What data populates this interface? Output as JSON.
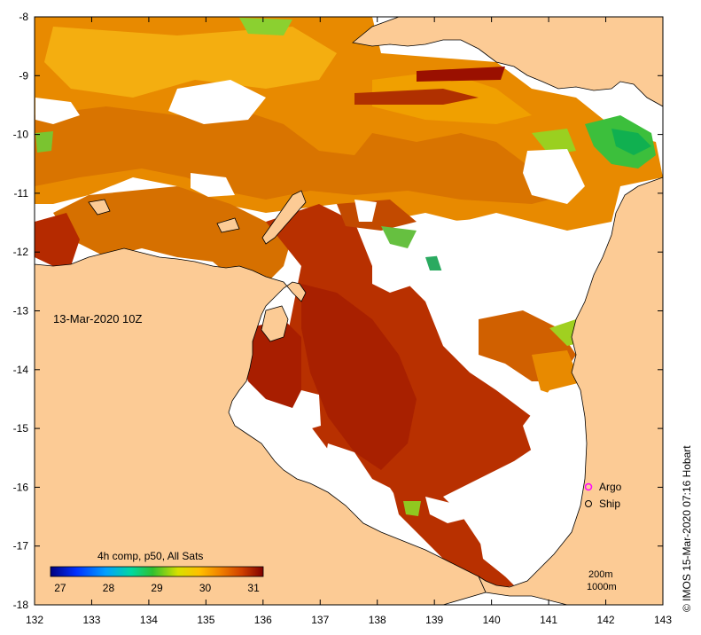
{
  "map": {
    "date_label": "13-Mar-2020 10Z",
    "credit": "© IMOS 15-Mar-2020 07:16 Hobart",
    "lon_ticks": [
      "132",
      "133",
      "134",
      "135",
      "136",
      "137",
      "138",
      "139",
      "140",
      "141",
      "142",
      "143"
    ],
    "lat_ticks": [
      "-8",
      "-9",
      "-10",
      "-11",
      "-12",
      "-13",
      "-14",
      "-15",
      "-16",
      "-17",
      "-18"
    ],
    "legend": {
      "title": "4h comp, p50, All Sats",
      "ticks": [
        "27",
        "28",
        "29",
        "30",
        "31"
      ],
      "min": 26.8,
      "max": 31.2
    },
    "markers": [
      {
        "label": "Argo",
        "color": "#ff00ff"
      },
      {
        "label": "Ship",
        "color": "#000000"
      }
    ],
    "depth_labels": [
      "200m",
      "1000m"
    ],
    "colors": {
      "land": "#fccb95",
      "cloud": "#ffffff",
      "sst_hot": "#b52a00",
      "sst_warm": "#e07a00",
      "sst_mid": "#f2a800",
      "sst_cool": "#2db84b"
    }
  }
}
